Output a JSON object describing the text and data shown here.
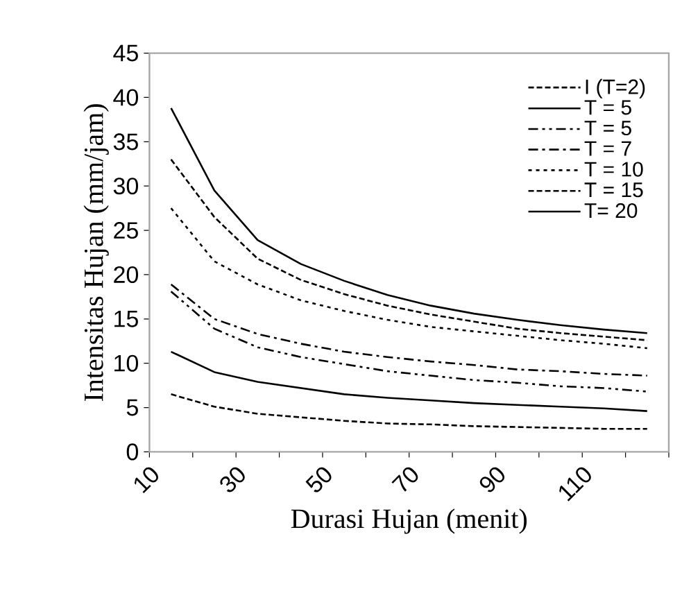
{
  "chart_data": {
    "type": "line",
    "xlabel": "Durasi Hujan (menit)",
    "ylabel": "Intensitas Hujan (mm/jam)",
    "x": [
      15,
      25,
      35,
      45,
      55,
      65,
      75,
      85,
      95,
      105,
      115,
      125
    ],
    "xlim": [
      10,
      130
    ],
    "xticks": [
      10,
      {
        "value": 20,
        "label": null
      },
      30,
      {
        "value": 40,
        "label": null
      },
      50,
      {
        "value": 60,
        "label": null
      },
      70,
      {
        "value": 80,
        "label": null
      },
      90,
      {
        "value": 100,
        "label": null
      },
      110,
      {
        "value": 120,
        "label": null
      },
      {
        "value": 130,
        "label": null
      }
    ],
    "ylim": [
      0,
      45
    ],
    "yticks": [
      0,
      5,
      10,
      15,
      20,
      25,
      30,
      35,
      40,
      45
    ],
    "legend": "top right",
    "series": [
      {
        "name": "I (T=2)",
        "color": "#000000",
        "line_style": "dashed",
        "values": [
          6.5,
          5.1,
          4.3,
          3.9,
          3.5,
          3.2,
          3.1,
          2.9,
          2.8,
          2.7,
          2.6,
          2.6
        ]
      },
      {
        "name": "T = 5",
        "color": "#000000",
        "line_style": "solid",
        "values": [
          11.3,
          9.0,
          7.9,
          7.2,
          6.5,
          6.1,
          5.8,
          5.5,
          5.3,
          5.1,
          4.9,
          4.6
        ]
      },
      {
        "name": "T = 5",
        "color": "#000000",
        "line_style": "dashdotdotted",
        "values": [
          18.1,
          13.9,
          11.8,
          10.7,
          9.9,
          9.1,
          8.6,
          8.1,
          7.8,
          7.4,
          7.2,
          6.8
        ]
      },
      {
        "name": "T = 7",
        "color": "#000000",
        "line_style": "dashdotted",
        "values": [
          18.9,
          15.0,
          13.3,
          12.2,
          11.3,
          10.7,
          10.2,
          9.8,
          9.3,
          9.1,
          8.8,
          8.6
        ]
      },
      {
        "name": "T = 10",
        "color": "#000000",
        "line_style": "dotted",
        "values": [
          27.5,
          21.5,
          18.9,
          17.1,
          15.9,
          14.9,
          14.1,
          13.6,
          13.1,
          12.6,
          12.2,
          11.7
        ]
      },
      {
        "name": "T = 15",
        "color": "#000000",
        "line_style": "dashed",
        "values": [
          33.0,
          26.5,
          21.8,
          19.4,
          17.8,
          16.5,
          15.5,
          14.7,
          13.9,
          13.4,
          13.0,
          12.6
        ]
      },
      {
        "name": "T= 20",
        "color": "#000000",
        "line_style": "solid",
        "values": [
          38.8,
          29.5,
          23.9,
          21.2,
          19.3,
          17.7,
          16.5,
          15.6,
          14.9,
          14.3,
          13.8,
          13.4
        ]
      }
    ]
  }
}
